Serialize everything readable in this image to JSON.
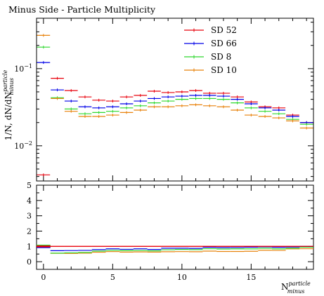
{
  "chart_data": [
    {
      "type": "line",
      "title": "Minus Side - Particle Multiplicity",
      "ylabel_main": "1/N, dN/dN",
      "ylabel_sup": "particle",
      "ylabel_sub": "minus",
      "yscale": "log",
      "ylim": [
        0.0035,
        0.45
      ],
      "y_ticks": [
        {
          "value": 0.01,
          "base": "10",
          "exp": "−2"
        },
        {
          "value": 0.1,
          "base": "10",
          "exp": "−1"
        }
      ],
      "xlim": [
        -0.5,
        19.5
      ],
      "x": [
        0,
        1,
        2,
        3,
        4,
        5,
        6,
        7,
        8,
        9,
        10,
        11,
        12,
        13,
        14,
        15,
        16,
        17,
        18,
        19
      ],
      "legend_position": "top-right",
      "series": [
        {
          "name": "SD 52",
          "color": "#e8000b",
          "values": [
            0.0042,
            0.075,
            0.052,
            0.043,
            0.039,
            0.038,
            0.043,
            0.045,
            0.051,
            0.049,
            0.05,
            0.052,
            0.048,
            0.048,
            0.043,
            0.037,
            0.032,
            0.031,
            0.025,
            0.02
          ]
        },
        {
          "name": "SD 66",
          "color": "#0000e8",
          "values": [
            0.12,
            0.053,
            0.038,
            0.032,
            0.031,
            0.032,
            0.035,
            0.038,
            0.041,
            0.043,
            0.044,
            0.045,
            0.045,
            0.044,
            0.04,
            0.035,
            0.031,
            0.029,
            0.024,
            0.02
          ]
        },
        {
          "name": "SD 8",
          "color": "#2ed82e",
          "values": [
            0.19,
            0.042,
            0.03,
            0.026,
            0.027,
            0.028,
            0.031,
            0.033,
            0.036,
            0.038,
            0.04,
            0.041,
            0.041,
            0.04,
            0.036,
            0.031,
            0.028,
            0.026,
            0.022,
            0.019
          ]
        },
        {
          "name": "SD 10",
          "color": "#e8820b",
          "values": [
            0.27,
            0.041,
            0.028,
            0.024,
            0.024,
            0.025,
            0.027,
            0.029,
            0.032,
            0.032,
            0.033,
            0.034,
            0.033,
            0.032,
            0.029,
            0.025,
            0.024,
            0.023,
            0.021,
            0.017
          ]
        }
      ]
    },
    {
      "type": "line",
      "panel": "ratio",
      "ylim": [
        -0.5,
        5
      ],
      "y_ticks": [
        "0",
        "1",
        "2",
        "3",
        "4",
        "5"
      ],
      "x_ticks": [
        "0",
        "5",
        "10",
        "15"
      ],
      "xlabel_main": "N",
      "xlabel_sup": "particle",
      "xlabel_sub": "minus",
      "xlim": [
        -0.5,
        19.5
      ],
      "x": [
        0,
        1,
        2,
        3,
        4,
        5,
        6,
        7,
        8,
        9,
        10,
        11,
        12,
        13,
        14,
        15,
        16,
        17,
        18,
        19
      ],
      "reference_value": 1,
      "series": [
        {
          "name": "SD 52",
          "color": "#e8000b",
          "values": [
            1,
            1,
            1,
            1,
            1,
            1,
            1,
            1,
            1,
            1,
            1,
            1,
            1,
            1,
            1,
            1,
            1,
            1,
            1,
            1
          ]
        },
        {
          "name": "SD 66",
          "color": "#0000e8",
          "values": [
            0.95,
            0.72,
            0.73,
            0.74,
            0.79,
            0.84,
            0.81,
            0.84,
            0.8,
            0.88,
            0.88,
            0.87,
            0.94,
            0.92,
            0.93,
            0.95,
            0.97,
            0.94,
            0.96,
            1.0
          ]
        },
        {
          "name": "SD 8",
          "color": "#2ed82e",
          "values": [
            1.05,
            0.56,
            0.58,
            0.6,
            0.69,
            0.74,
            0.72,
            0.73,
            0.71,
            0.78,
            0.8,
            0.79,
            0.85,
            0.83,
            0.84,
            0.84,
            0.88,
            0.84,
            0.88,
            0.95
          ]
        },
        {
          "name": "SD 10",
          "color": "#e8820b",
          "values": [
            1.0,
            0.55,
            0.54,
            0.56,
            0.62,
            0.66,
            0.63,
            0.64,
            0.63,
            0.65,
            0.66,
            0.65,
            0.69,
            0.67,
            0.67,
            0.68,
            0.75,
            0.74,
            0.84,
            0.85
          ]
        }
      ]
    }
  ]
}
